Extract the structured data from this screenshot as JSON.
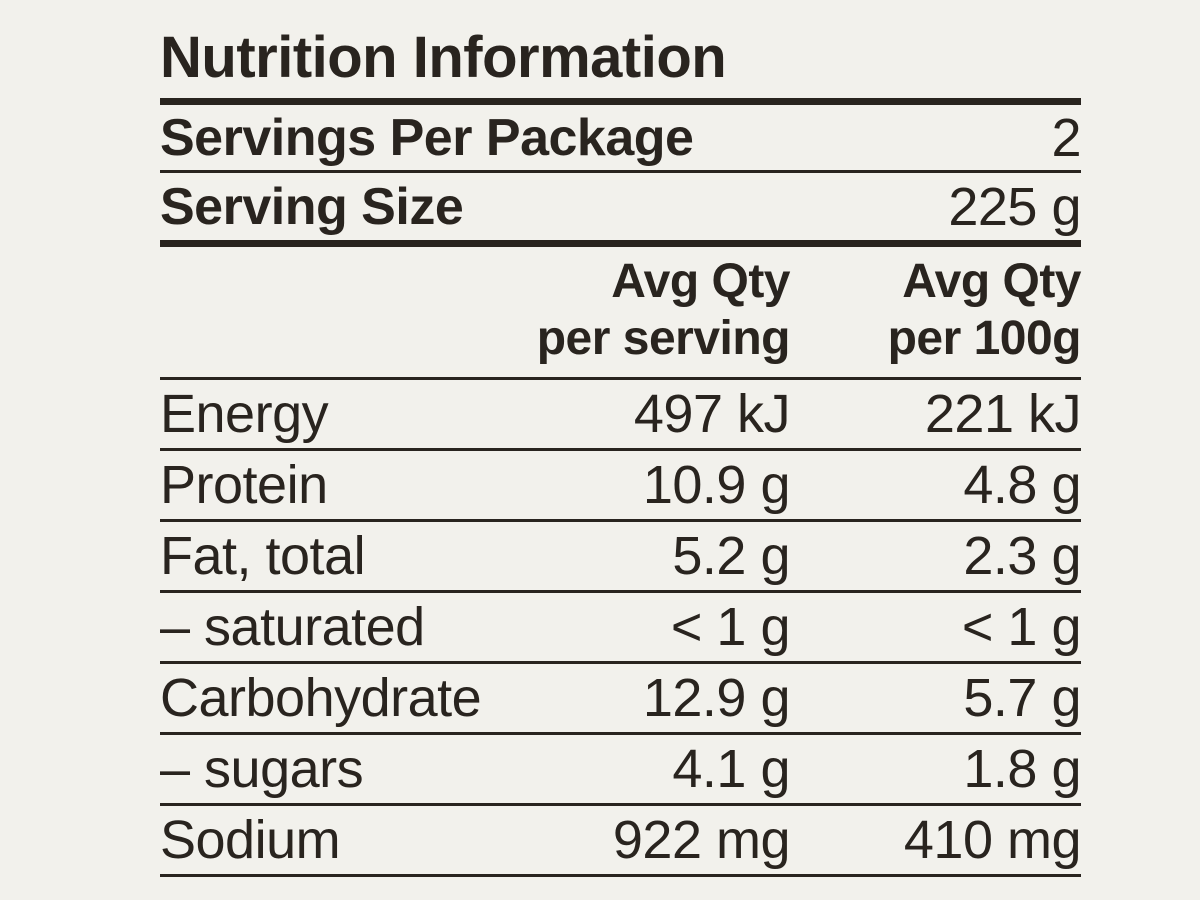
{
  "colors": {
    "background": "#f2f1ec",
    "ink": "#29241f"
  },
  "panel": {
    "title": "Nutrition Information",
    "summary_rows": [
      {
        "label": "Servings Per Package",
        "value": "2"
      },
      {
        "label": "Serving Size",
        "value": "225 g"
      }
    ],
    "column_headers": {
      "per_serving": [
        "Avg Qty",
        "per serving"
      ],
      "per_100g": [
        "Avg Qty",
        "per 100g"
      ]
    },
    "nutrient_rows": [
      {
        "name": "Energy",
        "per_serving": "497 kJ",
        "per_100g": "221 kJ"
      },
      {
        "name": "Protein",
        "per_serving": "10.9 g",
        "per_100g": "4.8 g"
      },
      {
        "name": "Fat, total",
        "per_serving": "5.2 g",
        "per_100g": "2.3 g"
      },
      {
        "name": "– saturated",
        "per_serving": "< 1 g",
        "per_100g": "< 1 g"
      },
      {
        "name": "Carbohydrate",
        "per_serving": "12.9 g",
        "per_100g": "5.7 g"
      },
      {
        "name": "– sugars",
        "per_serving": "4.1 g",
        "per_100g": "1.8 g"
      },
      {
        "name": "Sodium",
        "per_serving": "922 mg",
        "per_100g": "410 mg"
      }
    ]
  }
}
